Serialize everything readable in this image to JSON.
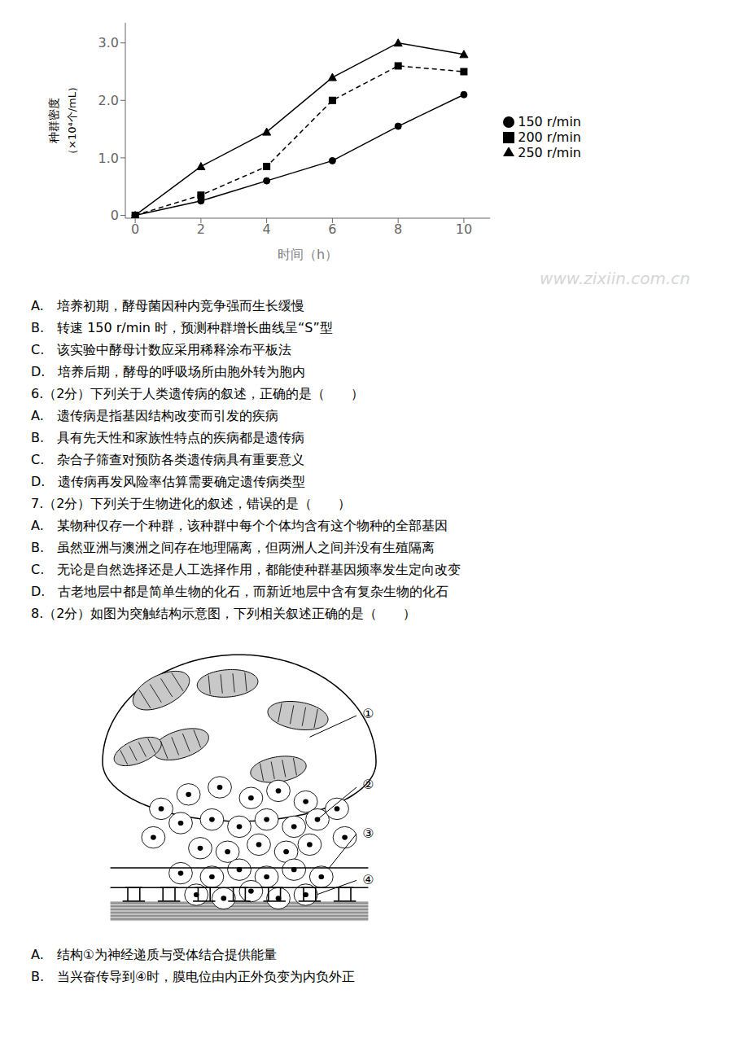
{
  "chart_data": {
    "type": "line",
    "xlabel": "时间（h）",
    "ylabel": [
      "种群密度",
      "（×10⁴个/mL）"
    ],
    "x": [
      0,
      2,
      4,
      6,
      8,
      10
    ],
    "series": [
      {
        "name": "250 r/min",
        "color": "#000000",
        "marker": "triangle",
        "line_style": "solid",
        "values": [
          0,
          0.85,
          1.45,
          2.4,
          3.0,
          2.8
        ]
      },
      {
        "name": "200 r/min",
        "color": "#000000",
        "marker": "square",
        "line_style": "dashed",
        "values": [
          0,
          0.35,
          0.85,
          2.0,
          2.6,
          2.5
        ]
      },
      {
        "name": "150 r/min",
        "color": "#000000",
        "marker": "circle",
        "line_style": "solid",
        "values": [
          0,
          0.25,
          0.6,
          0.95,
          1.55,
          2.1
        ]
      }
    ],
    "xlim": [
      -0.3,
      10.8
    ],
    "xticks": [
      0,
      2,
      4,
      6,
      8,
      10
    ],
    "ylim": [
      -0.05,
      3.35
    ],
    "yticks": [
      0,
      {
        "value": 1.0,
        "label": "1.0"
      },
      {
        "value": 2.0,
        "label": "2.0"
      },
      {
        "value": 3.0,
        "label": "3.0"
      }
    ],
    "grid": false,
    "legend": "right",
    "annotations": [
      "A.　培养初期，酵母菌因种内竞争强而生长缓慢",
      "B.　转速 150 r/min 时，预测种群增长曲线呈“S”型",
      "C.　该实验中酵母计数应采用稀释涂布平板法",
      "D.　培养后期，酵母的呼吸场所由胞外转为胞内",
      "6.（2分）下列关于人类遗传病的叙述，正确的是（　　）",
      "A.　遗传病是指基因结构改变而引发的疾病",
      "B.　具有先天性和家族性特点的疾病都是遗传病",
      "C.　杂合子筛查对预防各类遗传病具有重要意义",
      "D.　遗传病再发风险率估算需要确定遗传病类型",
      "7.（2分）下列关于生物进化的叙述，错误的是（　　）",
      "A.　某物种仅存一个种群，该种群中每个个体均含有这个物种的全部基因",
      "B.　虽然亚洲与澳洲之间存在地理隔离，但两洲人之间并没有生殖隔离",
      "C.　无论是自然选择还是人工选择作用，都能使种群基因频率发生定向改变",
      "D.　古老地层中都是简单生物的化石，而新近地层中含有复杂生物的化石",
      "8.（2分）如图为突触结构示意图，下列相关叙述正确的是（　　）",
      "A.　结构①为神经递质与受体结合提供能量",
      "B.　当兴奋传导到④时，膜电位由内正外负变为内负外正"
    ],
    "watermark": {
      "text": "www.zixiin.com.cn",
      "color": "#bbbbbb"
    },
    "diagram_labels": [
      "①",
      "②",
      "③",
      "④"
    ]
  }
}
